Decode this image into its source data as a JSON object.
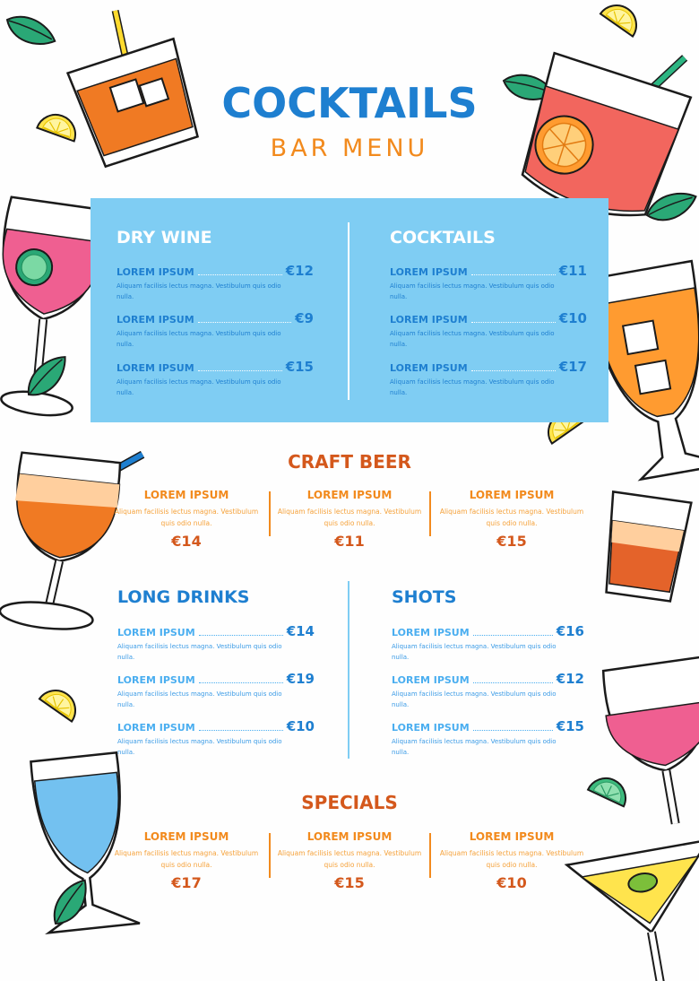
{
  "header": {
    "title": "COCKTAILS",
    "subtitle": "BAR MENU"
  },
  "dry_wine": {
    "title": "DRY WINE",
    "items": [
      {
        "name": "LOREM IPSUM",
        "price": "€12",
        "desc": "Aliquam facilisis lectus magna. Vestibulum quis odio nulla."
      },
      {
        "name": "LOREM IPSUM",
        "price": "€9",
        "desc": "Aliquam facilisis lectus magna. Vestibulum quis odio nulla."
      },
      {
        "name": "LOREM IPSUM",
        "price": "€15",
        "desc": "Aliquam facilisis lectus magna. Vestibulum quis odio nulla."
      }
    ]
  },
  "cocktails": {
    "title": "COCKTAILS",
    "items": [
      {
        "name": "LOREM IPSUM",
        "price": "€11",
        "desc": "Aliquam facilisis lectus magna. Vestibulum quis odio nulla."
      },
      {
        "name": "LOREM IPSUM",
        "price": "€10",
        "desc": "Aliquam facilisis lectus magna. Vestibulum quis odio nulla."
      },
      {
        "name": "LOREM IPSUM",
        "price": "€17",
        "desc": "Aliquam facilisis lectus magna. Vestibulum quis odio nulla."
      }
    ]
  },
  "craft_beer": {
    "title": "CRAFT BEER",
    "items": [
      {
        "name": "LOREM IPSUM",
        "desc": "Aliquam facilisis lectus magna. Vestibulum quis odio nulla.",
        "price": "€14"
      },
      {
        "name": "LOREM IPSUM",
        "desc": "Aliquam facilisis lectus magna. Vestibulum quis odio nulla.",
        "price": "€11"
      },
      {
        "name": "LOREM IPSUM",
        "desc": "Aliquam facilisis lectus magna. Vestibulum quis odio nulla.",
        "price": "€15"
      }
    ]
  },
  "long_drinks": {
    "title": "LONG DRINKS",
    "items": [
      {
        "name": "LOREM IPSUM",
        "price": "€14",
        "desc": "Aliquam facilisis lectus magna. Vestibulum quis odio nulla."
      },
      {
        "name": "LOREM IPSUM",
        "price": "€19",
        "desc": "Aliquam facilisis lectus magna. Vestibulum quis odio nulla."
      },
      {
        "name": "LOREM IPSUM",
        "price": "€10",
        "desc": "Aliquam facilisis lectus magna. Vestibulum quis odio nulla."
      }
    ]
  },
  "shots": {
    "title": "SHOTS",
    "items": [
      {
        "name": "LOREM IPSUM",
        "price": "€16",
        "desc": "Aliquam facilisis lectus magna. Vestibulum quis odio nulla."
      },
      {
        "name": "LOREM IPSUM",
        "price": "€12",
        "desc": "Aliquam facilisis lectus magna. Vestibulum quis odio nulla."
      },
      {
        "name": "LOREM IPSUM",
        "price": "€15",
        "desc": "Aliquam facilisis lectus magna. Vestibulum quis odio nulla."
      }
    ]
  },
  "specials": {
    "title": "SPECIALS",
    "items": [
      {
        "name": "LOREM IPSUM",
        "desc": "Aliquam facilisis lectus magna. Vestibulum quis odio nulla.",
        "price": "€17"
      },
      {
        "name": "LOREM IPSUM",
        "desc": "Aliquam facilisis lectus magna. Vestibulum quis odio nulla.",
        "price": "€15"
      },
      {
        "name": "LOREM IPSUM",
        "desc": "Aliquam facilisis lectus magna. Vestibulum quis odio nulla.",
        "price": "€10"
      }
    ]
  },
  "colors": {
    "primary_blue": "#1e7fd0",
    "light_blue": "#4aaef0",
    "panel_blue": "#7fcdf3",
    "orange": "#f28a1d",
    "dark_orange": "#d4581c"
  },
  "icons": [
    "leaf-icon",
    "lemon-slice-icon",
    "lime-slice-icon",
    "whiskey-glass-icon",
    "red-cocktail-icon",
    "pink-wine-glass-icon",
    "orange-drink-icon",
    "beer-glass-icon",
    "shot-glass-icon",
    "blue-drink-icon",
    "rose-wine-glass-icon",
    "martini-glass-icon"
  ]
}
